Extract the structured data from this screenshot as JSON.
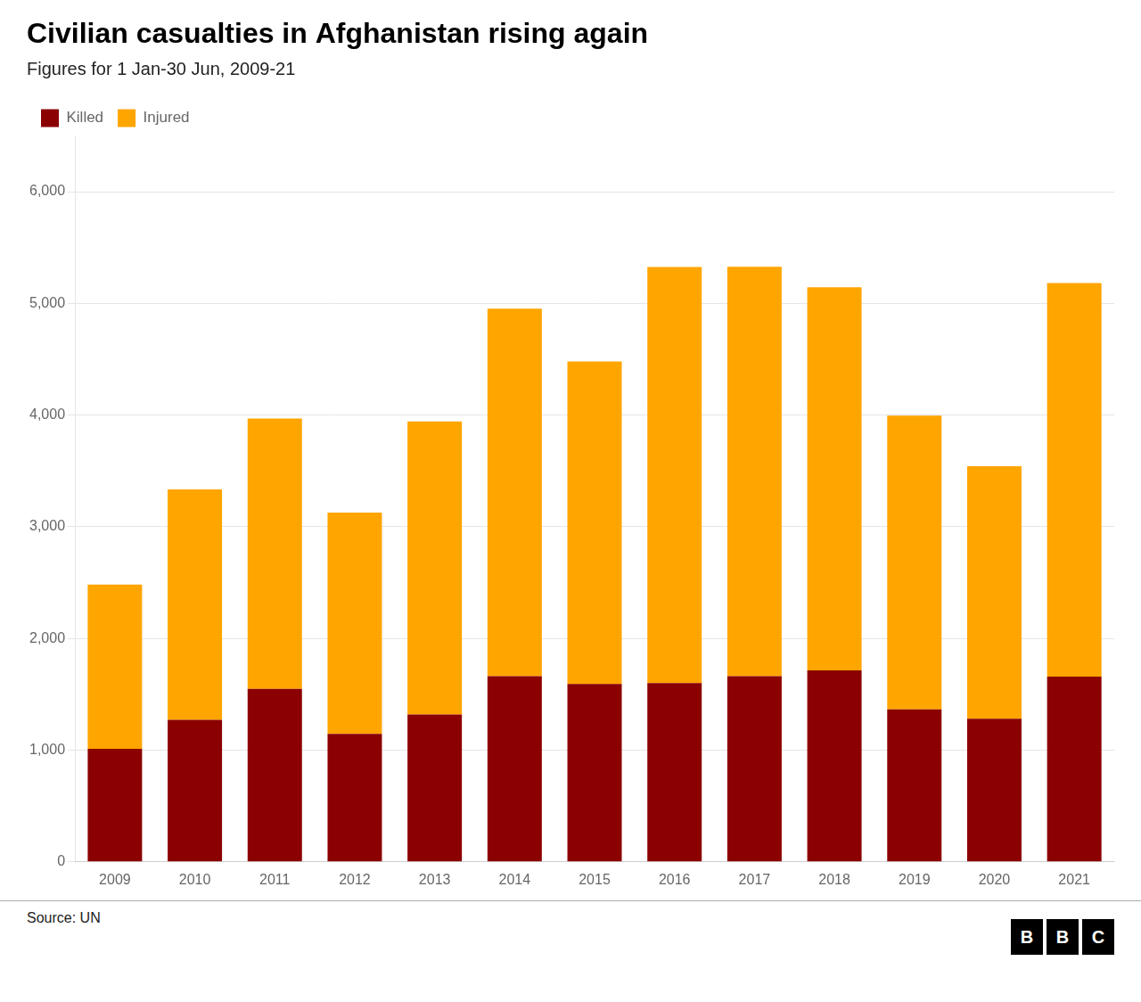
{
  "chart_data": {
    "type": "bar",
    "title": "Civilian casualties in Afghanistan rising again",
    "subtitle": "Figures for 1 Jan-30 Jun, 2009-21",
    "source": "Source: UN",
    "logo": "BBC",
    "categories": [
      "2009",
      "2010",
      "2011",
      "2012",
      "2013",
      "2014",
      "2015",
      "2016",
      "2017",
      "2018",
      "2019",
      "2020",
      "2021"
    ],
    "series": [
      {
        "name": "Killed",
        "color": "#8B0000",
        "values": [
          1013,
          1271,
          1548,
          1145,
          1319,
          1663,
          1592,
          1601,
          1662,
          1715,
          1366,
          1282,
          1659
        ]
      },
      {
        "name": "Injured",
        "color": "#FFA500",
        "values": [
          1469,
          2063,
          2422,
          1982,
          2625,
          3289,
          2887,
          3724,
          3666,
          3429,
          2629,
          2261,
          3523
        ]
      }
    ],
    "stacked": true,
    "ylim": [
      0,
      6500
    ],
    "yticks": [
      0,
      {
        "value": 1000,
        "label": "1,000"
      },
      {
        "value": 2000,
        "label": "2,000"
      },
      {
        "value": 3000,
        "label": "3,000"
      },
      {
        "value": 4000,
        "label": "4,000"
      },
      {
        "value": 5000,
        "label": "5,000"
      },
      {
        "value": 6000,
        "label": "6,000"
      }
    ],
    "grid": true,
    "legend": "upper left"
  }
}
